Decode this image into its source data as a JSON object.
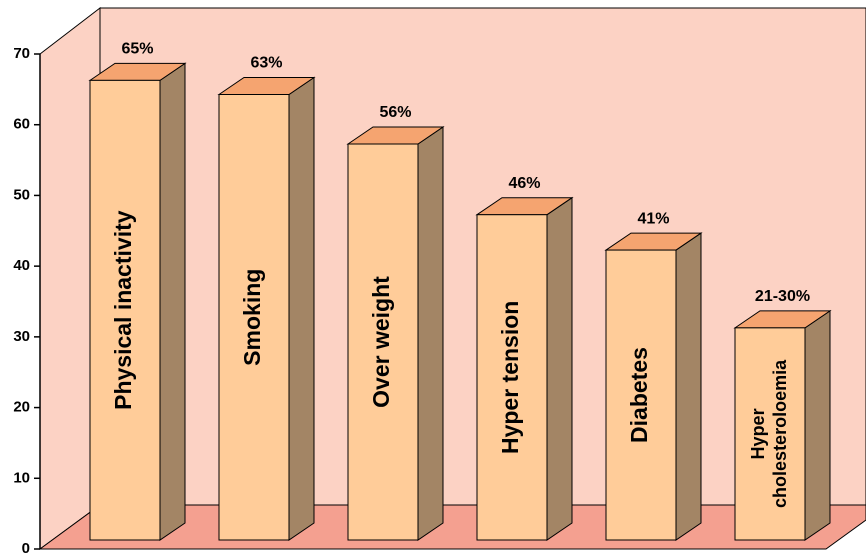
{
  "chart_data": {
    "type": "bar3d",
    "categories": [
      "Physical inactivity",
      "Smoking",
      "Over weight",
      "Hyper tension",
      "Diabetes",
      "Hyper cholesteroloemia"
    ],
    "values": [
      65,
      63,
      56,
      46,
      41,
      30
    ],
    "value_labels": [
      "65%",
      "63%",
      "56%",
      "46%",
      "41%",
      "21-30%"
    ],
    "ylim": [
      0,
      70
    ],
    "yticks": [
      0,
      10,
      20,
      30,
      40,
      50,
      60,
      70
    ],
    "color": "#ffcc99"
  }
}
